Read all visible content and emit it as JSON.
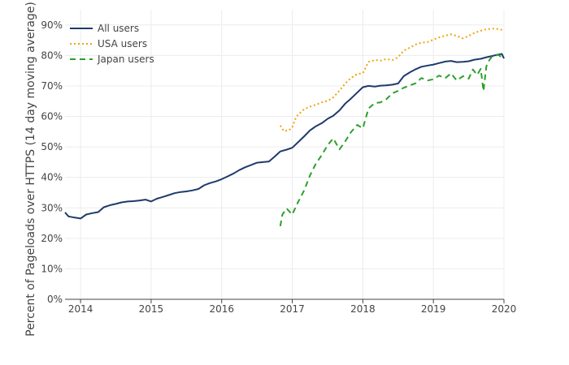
{
  "chart_data": {
    "type": "line",
    "title": "",
    "xlabel": "",
    "ylabel": "Percent of Pageloads over HTTPS (14 day moving average)",
    "xlim": [
      2013.78,
      2020.0
    ],
    "ylim": [
      0,
      95
    ],
    "x_ticks": [
      2014,
      2015,
      2016,
      2017,
      2018,
      2019,
      2020
    ],
    "x_tick_labels": [
      "2014",
      "2015",
      "2016",
      "2017",
      "2018",
      "2019",
      "2020"
    ],
    "y_ticks": [
      0,
      10,
      20,
      30,
      40,
      50,
      60,
      70,
      80,
      90
    ],
    "y_tick_labels": [
      "0%",
      "10%",
      "20%",
      "30%",
      "40%",
      "50%",
      "60%",
      "70%",
      "80%",
      "90%"
    ],
    "grid": true,
    "legend_position": "top-left",
    "series": [
      {
        "name": "All users",
        "color": "#1f3a6b",
        "dash": "solid",
        "points": [
          [
            2013.78,
            28.5
          ],
          [
            2013.83,
            27.2
          ],
          [
            2013.92,
            26.8
          ],
          [
            2014.0,
            26.5
          ],
          [
            2014.08,
            27.8
          ],
          [
            2014.17,
            28.3
          ],
          [
            2014.25,
            28.6
          ],
          [
            2014.33,
            30.2
          ],
          [
            2014.42,
            30.9
          ],
          [
            2014.5,
            31.3
          ],
          [
            2014.58,
            31.8
          ],
          [
            2014.67,
            32.1
          ],
          [
            2014.75,
            32.2
          ],
          [
            2014.83,
            32.4
          ],
          [
            2014.92,
            32.7
          ],
          [
            2015.0,
            32.1
          ],
          [
            2015.08,
            33.0
          ],
          [
            2015.17,
            33.6
          ],
          [
            2015.25,
            34.2
          ],
          [
            2015.33,
            34.8
          ],
          [
            2015.42,
            35.2
          ],
          [
            2015.5,
            35.4
          ],
          [
            2015.58,
            35.7
          ],
          [
            2015.67,
            36.2
          ],
          [
            2015.75,
            37.4
          ],
          [
            2015.83,
            38.1
          ],
          [
            2015.92,
            38.7
          ],
          [
            2016.0,
            39.4
          ],
          [
            2016.08,
            40.3
          ],
          [
            2016.17,
            41.3
          ],
          [
            2016.25,
            42.4
          ],
          [
            2016.33,
            43.3
          ],
          [
            2016.42,
            44.1
          ],
          [
            2016.5,
            44.8
          ],
          [
            2016.58,
            45.0
          ],
          [
            2016.67,
            45.2
          ],
          [
            2016.75,
            46.8
          ],
          [
            2016.83,
            48.5
          ],
          [
            2016.92,
            49.1
          ],
          [
            2017.0,
            49.7
          ],
          [
            2017.08,
            51.5
          ],
          [
            2017.17,
            53.5
          ],
          [
            2017.25,
            55.4
          ],
          [
            2017.33,
            56.7
          ],
          [
            2017.42,
            57.8
          ],
          [
            2017.5,
            59.2
          ],
          [
            2017.58,
            60.2
          ],
          [
            2017.67,
            62.0
          ],
          [
            2017.75,
            64.2
          ],
          [
            2017.83,
            65.8
          ],
          [
            2017.92,
            67.8
          ],
          [
            2018.0,
            69.6
          ],
          [
            2018.08,
            70.0
          ],
          [
            2018.17,
            69.8
          ],
          [
            2018.25,
            70.1
          ],
          [
            2018.33,
            70.2
          ],
          [
            2018.42,
            70.4
          ],
          [
            2018.5,
            70.8
          ],
          [
            2018.58,
            73.2
          ],
          [
            2018.67,
            74.5
          ],
          [
            2018.75,
            75.5
          ],
          [
            2018.83,
            76.3
          ],
          [
            2018.92,
            76.7
          ],
          [
            2019.0,
            77.0
          ],
          [
            2019.08,
            77.5
          ],
          [
            2019.17,
            78.0
          ],
          [
            2019.25,
            78.2
          ],
          [
            2019.33,
            77.8
          ],
          [
            2019.42,
            77.9
          ],
          [
            2019.5,
            78.1
          ],
          [
            2019.58,
            78.6
          ],
          [
            2019.67,
            78.9
          ],
          [
            2019.75,
            79.4
          ],
          [
            2019.83,
            79.8
          ],
          [
            2019.92,
            80.3
          ],
          [
            2019.97,
            80.5
          ],
          [
            2020.0,
            79.0
          ]
        ]
      },
      {
        "name": "USA users",
        "color": "#f0a30a",
        "dash": "dotted",
        "points": [
          [
            2016.83,
            57.0
          ],
          [
            2016.88,
            55.2
          ],
          [
            2016.95,
            55.4
          ],
          [
            2017.0,
            56.4
          ],
          [
            2017.04,
            59.0
          ],
          [
            2017.08,
            60.5
          ],
          [
            2017.17,
            62.4
          ],
          [
            2017.25,
            63.2
          ],
          [
            2017.33,
            63.8
          ],
          [
            2017.42,
            64.6
          ],
          [
            2017.5,
            65.1
          ],
          [
            2017.58,
            66.2
          ],
          [
            2017.67,
            68.5
          ],
          [
            2017.75,
            70.8
          ],
          [
            2017.83,
            72.6
          ],
          [
            2017.92,
            73.9
          ],
          [
            2018.0,
            74.2
          ],
          [
            2018.08,
            77.9
          ],
          [
            2018.17,
            78.5
          ],
          [
            2018.25,
            78.3
          ],
          [
            2018.33,
            78.8
          ],
          [
            2018.42,
            78.5
          ],
          [
            2018.5,
            79.4
          ],
          [
            2018.58,
            81.6
          ],
          [
            2018.67,
            82.6
          ],
          [
            2018.75,
            83.6
          ],
          [
            2018.83,
            84.2
          ],
          [
            2018.92,
            84.4
          ],
          [
            2019.0,
            85.2
          ],
          [
            2019.08,
            85.9
          ],
          [
            2019.17,
            86.5
          ],
          [
            2019.25,
            86.9
          ],
          [
            2019.33,
            86.4
          ],
          [
            2019.42,
            85.6
          ],
          [
            2019.5,
            86.4
          ],
          [
            2019.58,
            87.4
          ],
          [
            2019.67,
            88.1
          ],
          [
            2019.75,
            88.6
          ],
          [
            2019.83,
            88.8
          ],
          [
            2019.92,
            88.7
          ],
          [
            2020.0,
            88.2
          ]
        ]
      },
      {
        "name": "Japan users",
        "color": "#2ca02c",
        "dash": "dashed",
        "points": [
          [
            2016.83,
            24.0
          ],
          [
            2016.86,
            27.8
          ],
          [
            2016.92,
            29.8
          ],
          [
            2017.0,
            27.8
          ],
          [
            2017.08,
            31.8
          ],
          [
            2017.17,
            35.8
          ],
          [
            2017.25,
            40.6
          ],
          [
            2017.33,
            44.3
          ],
          [
            2017.42,
            47.4
          ],
          [
            2017.5,
            50.5
          ],
          [
            2017.58,
            52.8
          ],
          [
            2017.67,
            49.2
          ],
          [
            2017.75,
            51.8
          ],
          [
            2017.83,
            54.8
          ],
          [
            2017.92,
            57.2
          ],
          [
            2018.0,
            56.1
          ],
          [
            2018.08,
            62.6
          ],
          [
            2018.17,
            64.4
          ],
          [
            2018.25,
            64.6
          ],
          [
            2018.33,
            65.6
          ],
          [
            2018.42,
            67.6
          ],
          [
            2018.5,
            68.4
          ],
          [
            2018.58,
            69.4
          ],
          [
            2018.67,
            70.2
          ],
          [
            2018.75,
            70.9
          ],
          [
            2018.83,
            72.6
          ],
          [
            2018.92,
            71.8
          ],
          [
            2019.0,
            72.2
          ],
          [
            2019.08,
            73.4
          ],
          [
            2019.17,
            72.6
          ],
          [
            2019.25,
            74.1
          ],
          [
            2019.33,
            71.8
          ],
          [
            2019.42,
            73.2
          ],
          [
            2019.5,
            72.4
          ],
          [
            2019.56,
            75.4
          ],
          [
            2019.62,
            73.6
          ],
          [
            2019.67,
            75.6
          ],
          [
            2019.71,
            68.3
          ],
          [
            2019.75,
            76.4
          ],
          [
            2019.79,
            78.4
          ],
          [
            2019.83,
            79.6
          ],
          [
            2019.92,
            80.2
          ],
          [
            2020.0,
            78.8
          ]
        ]
      }
    ]
  }
}
